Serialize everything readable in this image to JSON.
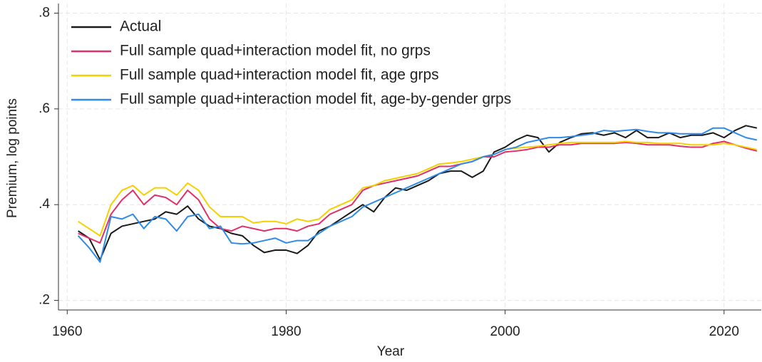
{
  "chart_data": {
    "type": "line",
    "x_label": "Year",
    "y_label": "Premium, log points",
    "x": [
      1961,
      1962,
      1963,
      1964,
      1965,
      1966,
      1967,
      1968,
      1969,
      1970,
      1971,
      1972,
      1973,
      1974,
      1975,
      1976,
      1977,
      1978,
      1979,
      1980,
      1981,
      1982,
      1983,
      1984,
      1985,
      1986,
      1987,
      1988,
      1989,
      1990,
      1991,
      1992,
      1993,
      1994,
      1995,
      1996,
      1997,
      1998,
      1999,
      2000,
      2001,
      2002,
      2003,
      2004,
      2005,
      2006,
      2007,
      2008,
      2009,
      2010,
      2011,
      2012,
      2013,
      2014,
      2015,
      2016,
      2017,
      2018,
      2019,
      2020,
      2021,
      2022,
      2023
    ],
    "xlim": [
      1959.2,
      2023.4
    ],
    "xticks": [
      1960,
      1980,
      2000,
      2020
    ],
    "ylim": [
      0.18,
      0.82
    ],
    "yticks": [
      {
        "value": 0.2,
        "label": ".2"
      },
      {
        "value": 0.4,
        "label": ".4"
      },
      {
        "value": 0.6,
        "label": ".6"
      },
      {
        "value": 0.8,
        "label": ".8"
      }
    ],
    "grid": true,
    "legend": "top-left",
    "series": [
      {
        "name": "Actual",
        "color": "#1a1a1a",
        "values": [
          0.345,
          0.33,
          0.285,
          0.34,
          0.355,
          0.36,
          0.365,
          0.37,
          0.385,
          0.38,
          0.397,
          0.37,
          0.355,
          0.35,
          0.34,
          0.335,
          0.315,
          0.3,
          0.305,
          0.305,
          0.298,
          0.315,
          0.345,
          0.355,
          0.37,
          0.385,
          0.4,
          0.385,
          0.415,
          0.435,
          0.43,
          0.44,
          0.45,
          0.465,
          0.47,
          0.47,
          0.457,
          0.47,
          0.51,
          0.52,
          0.535,
          0.545,
          0.54,
          0.51,
          0.53,
          0.54,
          0.548,
          0.55,
          0.545,
          0.55,
          0.54,
          0.555,
          0.54,
          0.54,
          0.55,
          0.54,
          0.545,
          0.545,
          0.55,
          0.54,
          0.555,
          0.565,
          0.56
        ]
      },
      {
        "name": "Full sample quad+interaction model fit, no grps",
        "color": "#e0306a",
        "values": [
          0.34,
          0.33,
          0.32,
          0.38,
          0.41,
          0.43,
          0.4,
          0.42,
          0.415,
          0.4,
          0.43,
          0.41,
          0.37,
          0.35,
          0.345,
          0.355,
          0.35,
          0.345,
          0.35,
          0.35,
          0.345,
          0.355,
          0.36,
          0.38,
          0.39,
          0.4,
          0.43,
          0.44,
          0.445,
          0.45,
          0.455,
          0.46,
          0.47,
          0.48,
          0.48,
          0.485,
          0.49,
          0.5,
          0.5,
          0.51,
          0.512,
          0.515,
          0.52,
          0.52,
          0.525,
          0.525,
          0.528,
          0.528,
          0.528,
          0.528,
          0.53,
          0.528,
          0.525,
          0.525,
          0.525,
          0.522,
          0.52,
          0.52,
          0.528,
          0.532,
          0.525,
          0.518,
          0.512
        ]
      },
      {
        "name": "Full sample quad+interaction model fit, age grps",
        "color": "#f5d000",
        "values": [
          0.365,
          0.35,
          0.335,
          0.4,
          0.43,
          0.44,
          0.42,
          0.435,
          0.435,
          0.42,
          0.445,
          0.43,
          0.395,
          0.375,
          0.375,
          0.375,
          0.362,
          0.365,
          0.365,
          0.36,
          0.37,
          0.365,
          0.37,
          0.39,
          0.4,
          0.41,
          0.435,
          0.44,
          0.45,
          0.455,
          0.46,
          0.465,
          0.475,
          0.485,
          0.487,
          0.49,
          0.495,
          0.5,
          0.505,
          0.515,
          0.518,
          0.52,
          0.522,
          0.525,
          0.528,
          0.53,
          0.53,
          0.53,
          0.53,
          0.53,
          0.532,
          0.53,
          0.53,
          0.528,
          0.528,
          0.528,
          0.525,
          0.525,
          0.525,
          0.528,
          0.525,
          0.52,
          0.515
        ]
      },
      {
        "name": "Full sample quad+interaction model fit, age-by-gender grps",
        "color": "#2f8be6",
        "values": [
          0.335,
          0.31,
          0.28,
          0.375,
          0.37,
          0.38,
          0.35,
          0.375,
          0.37,
          0.345,
          0.375,
          0.38,
          0.35,
          0.355,
          0.32,
          0.318,
          0.32,
          0.325,
          0.33,
          0.32,
          0.325,
          0.325,
          0.34,
          0.355,
          0.365,
          0.375,
          0.395,
          0.405,
          0.415,
          0.425,
          0.435,
          0.445,
          0.455,
          0.465,
          0.475,
          0.485,
          0.49,
          0.5,
          0.505,
          0.515,
          0.52,
          0.53,
          0.535,
          0.54,
          0.54,
          0.542,
          0.545,
          0.548,
          0.555,
          0.553,
          0.555,
          0.557,
          0.553,
          0.55,
          0.55,
          0.548,
          0.548,
          0.548,
          0.56,
          0.56,
          0.55,
          0.54,
          0.535
        ]
      }
    ]
  }
}
